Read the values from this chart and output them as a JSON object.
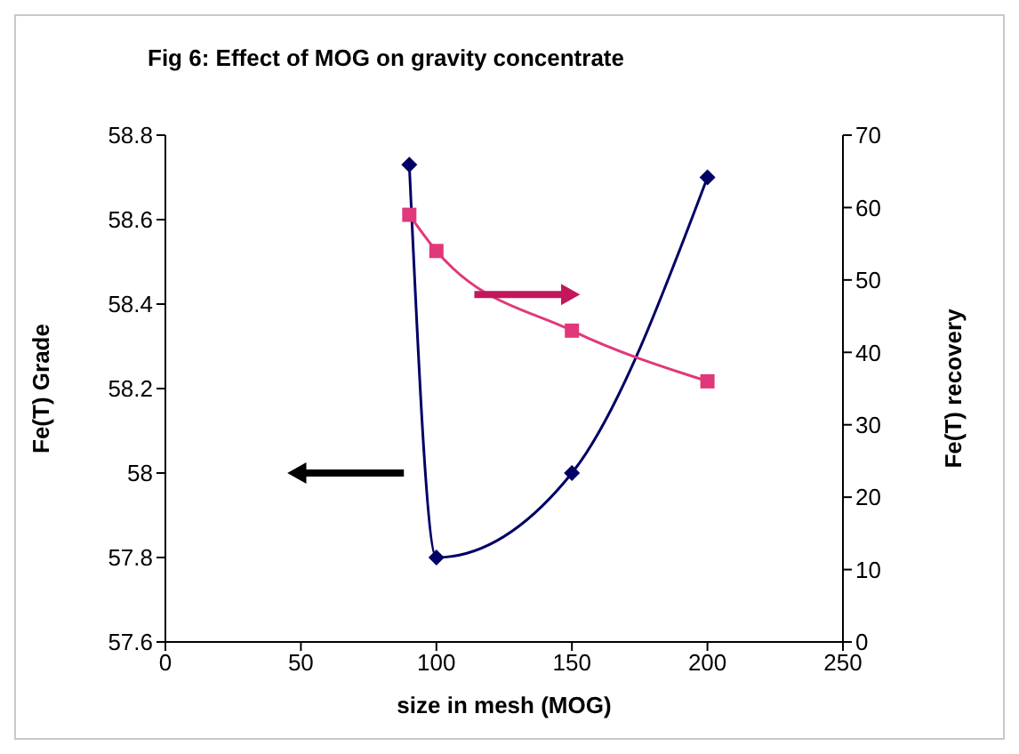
{
  "chart_data": {
    "type": "line",
    "title": "Fig 6: Effect of MOG on gravity concentrate",
    "xlabel": "size in mesh (MOG)",
    "ylabel": "Fe(T) Grade",
    "y2label": "Fe(T) recovery",
    "x": [
      90,
      100,
      150,
      200
    ],
    "xlim": [
      0,
      250
    ],
    "xticks": [
      0,
      50,
      100,
      150,
      200,
      250
    ],
    "ylim": [
      57.6,
      58.8
    ],
    "yticks": [
      57.6,
      57.8,
      58,
      58.2,
      58.4,
      58.6,
      58.8
    ],
    "y2lim": [
      0,
      70
    ],
    "y2ticks": [
      0,
      10,
      20,
      30,
      40,
      50,
      60,
      70
    ],
    "grid": false,
    "legend": false,
    "series": [
      {
        "color": "#000066",
        "marker": "diamond",
        "values": [
          58.73,
          57.8,
          58.0,
          58.7
        ]
      },
      {
        "color": "#e0387a",
        "marker": "square",
        "axis": "y2",
        "values": [
          59,
          54,
          43,
          36
        ]
      }
    ]
  }
}
